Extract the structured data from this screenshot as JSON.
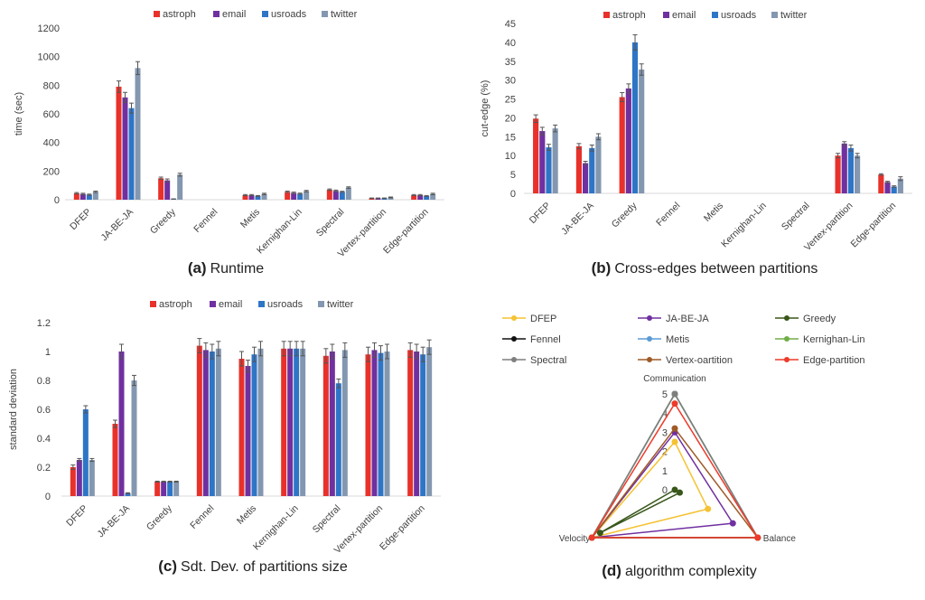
{
  "series_colors": {
    "astroph": "#e8312a",
    "email": "#7030a0",
    "usroads": "#2e75c6",
    "twitter": "#8497b0"
  },
  "chart_data": [
    {
      "id": "a",
      "type": "bar",
      "caption_label": "(a)",
      "caption_text": "Runtime",
      "ylabel": "time (sec)",
      "xlabel": "",
      "ylim": [
        0,
        1200
      ],
      "yticks": [
        0,
        200,
        400,
        600,
        800,
        1000,
        1200
      ],
      "legend_position": "top",
      "categories": [
        "DFEP",
        "JA-BE-JA",
        "Greedy",
        "Fennel",
        "Metis",
        "Kernighan-Lin",
        "Spectral",
        "Vertex-partition",
        "Edge-partition"
      ],
      "series": [
        {
          "name": "astroph",
          "values": [
            45,
            790,
            150,
            0,
            32,
            55,
            70,
            10,
            32
          ],
          "errors": [
            5,
            40,
            8,
            0,
            4,
            5,
            5,
            2,
            4
          ]
        },
        {
          "name": "email",
          "values": [
            40,
            715,
            135,
            0,
            32,
            48,
            62,
            10,
            32
          ],
          "errors": [
            5,
            35,
            10,
            0,
            4,
            5,
            5,
            2,
            4
          ]
        },
        {
          "name": "usroads",
          "values": [
            35,
            640,
            5,
            0,
            26,
            42,
            55,
            10,
            26
          ],
          "errors": [
            4,
            35,
            1,
            0,
            3,
            4,
            4,
            2,
            3
          ]
        },
        {
          "name": "twitter",
          "values": [
            55,
            920,
            175,
            0,
            40,
            60,
            85,
            16,
            40
          ],
          "errors": [
            5,
            45,
            10,
            0,
            5,
            5,
            5,
            3,
            5
          ]
        }
      ]
    },
    {
      "id": "b",
      "type": "bar",
      "caption_label": "(b)",
      "caption_text": "Cross-edges between partitions",
      "ylabel": "cut-edge (%)",
      "xlabel": "",
      "ylim": [
        0,
        45
      ],
      "yticks": [
        0,
        5,
        10,
        15,
        20,
        25,
        30,
        35,
        40,
        45
      ],
      "legend_position": "top",
      "categories": [
        "DFEP",
        "JA-BE-JA",
        "Greedy",
        "Fennel",
        "Metis",
        "Kernighan-Lin",
        "Spectral",
        "Vertex-partition",
        "Edge-partition"
      ],
      "series": [
        {
          "name": "astroph",
          "values": [
            19.8,
            12.5,
            25.5,
            0,
            0,
            0,
            0,
            10,
            5
          ],
          "errors": [
            1,
            0.7,
            1.2,
            0,
            0,
            0,
            0,
            0.6,
            0.2
          ]
        },
        {
          "name": "email",
          "values": [
            16.5,
            8,
            27.8,
            0,
            0,
            0,
            0,
            13.2,
            3
          ],
          "errors": [
            1,
            0.5,
            1.2,
            0,
            0,
            0,
            0,
            0.5,
            0.2
          ]
        },
        {
          "name": "usroads",
          "values": [
            12.2,
            12,
            40,
            0,
            0,
            0,
            0,
            12,
            1.8
          ],
          "errors": [
            0.8,
            0.8,
            2,
            0,
            0,
            0,
            0,
            0.8,
            0.2
          ]
        },
        {
          "name": "twitter",
          "values": [
            17.2,
            15,
            32.8,
            0,
            0,
            0,
            0,
            10,
            3.9
          ],
          "errors": [
            0.9,
            0.8,
            1.5,
            0,
            0,
            0,
            0,
            0.6,
            0.5
          ]
        }
      ]
    },
    {
      "id": "c",
      "type": "bar",
      "caption_label": "(c)",
      "caption_text": "Sdt. Dev. of partitions size",
      "ylabel": "standard deviation",
      "xlabel": "",
      "ylim": [
        0,
        1.2
      ],
      "yticks": [
        0,
        0.2,
        0.4,
        0.6,
        0.8,
        1,
        1.2
      ],
      "legend_position": "top",
      "categories": [
        "DFEP",
        "JA-BE-JA",
        "Greedy",
        "Fennel",
        "Metis",
        "Kernighan-Lin",
        "Spectral",
        "Vertex-partition",
        "Edge-partition"
      ],
      "series": [
        {
          "name": "astroph",
          "values": [
            0.2,
            0.5,
            0.1,
            1.04,
            0.95,
            1.02,
            0.97,
            0.98,
            1.01
          ],
          "errors": [
            0.015,
            0.025,
            0.003,
            0.05,
            0.05,
            0.05,
            0.05,
            0.05,
            0.05
          ]
        },
        {
          "name": "email",
          "values": [
            0.25,
            1.0,
            0.1,
            1.01,
            0.9,
            1.02,
            1.0,
            1.01,
            1.0
          ],
          "errors": [
            0.01,
            0.05,
            0.003,
            0.05,
            0.04,
            0.05,
            0.05,
            0.05,
            0.05
          ]
        },
        {
          "name": "usroads",
          "values": [
            0.6,
            0.02,
            0.1,
            1.0,
            0.98,
            1.02,
            0.78,
            0.99,
            0.98
          ],
          "errors": [
            0.025,
            0.003,
            0.003,
            0.05,
            0.05,
            0.05,
            0.03,
            0.05,
            0.05
          ]
        },
        {
          "name": "twitter",
          "values": [
            0.25,
            0.8,
            0.1,
            1.02,
            1.02,
            1.02,
            1.01,
            1.0,
            1.03
          ],
          "errors": [
            0.01,
            0.035,
            0.003,
            0.05,
            0.05,
            0.05,
            0.05,
            0.05,
            0.05
          ]
        }
      ]
    },
    {
      "id": "d",
      "type": "radar",
      "caption_label": "(d)",
      "caption_text": "algorithm complexity",
      "axes": [
        "Communication",
        "Balance",
        "Velocity"
      ],
      "rlim": [
        0,
        5
      ],
      "rticks": [
        0,
        1,
        2,
        3,
        4,
        5
      ],
      "legend_position": "top",
      "series": [
        {
          "name": "DFEP",
          "color": "#f5c232",
          "values": [
            2.5,
            2,
            5
          ]
        },
        {
          "name": "JA-BE-JA",
          "color": "#7030a0",
          "values": [
            3,
            3.5,
            5
          ]
        },
        {
          "name": "Greedy",
          "color": "#38571a",
          "values": [
            0,
            0.3,
            4.5
          ]
        },
        {
          "name": "Fennel",
          "color": "#111111",
          "values": [
            5,
            5,
            5
          ]
        },
        {
          "name": "Metis",
          "color": "#5b9bd5",
          "values": [
            5,
            5,
            5
          ]
        },
        {
          "name": "Kernighan-Lin",
          "color": "#70ad47",
          "values": [
            5,
            5,
            5
          ]
        },
        {
          "name": "Spectral",
          "color": "#7f7f7f",
          "values": [
            5,
            5,
            5
          ]
        },
        {
          "name": "Vertex-oartition",
          "color": "#9e5b28",
          "values": [
            3.2,
            5,
            5
          ]
        },
        {
          "name": "Edge-partition",
          "color": "#ee3a2a",
          "values": [
            4.5,
            5,
            5
          ]
        }
      ]
    }
  ]
}
